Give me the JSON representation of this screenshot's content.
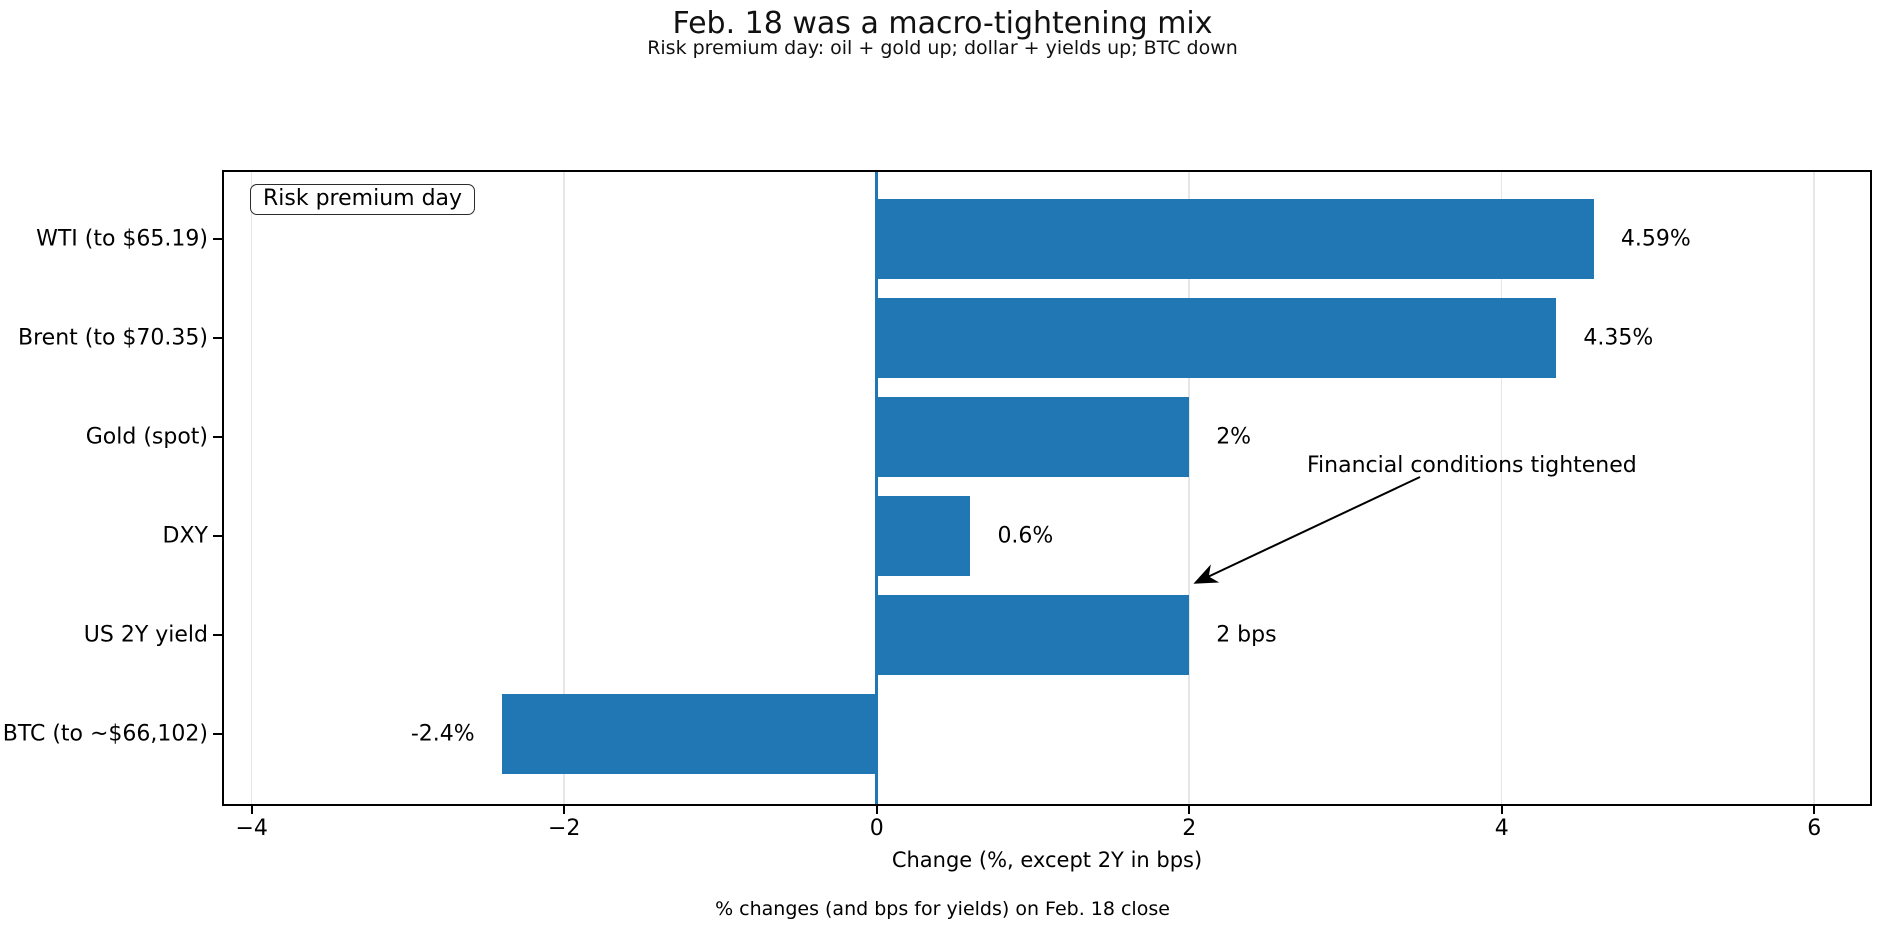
{
  "chart_data": {
    "type": "bar",
    "orientation": "horizontal",
    "title": "Feb. 18 was a macro-tightening mix",
    "subtitle": "Risk premium day: oil + gold up; dollar + yields up; BTC down",
    "categories": [
      "WTI (to $65.19)",
      "Brent (to $70.35)",
      "Gold (spot)",
      "DXY",
      "US 2Y yield",
      "BTC (to ~$66,102)"
    ],
    "values": [
      4.59,
      4.35,
      2.0,
      0.6,
      2.0,
      -2.4
    ],
    "value_labels": [
      "4.59%",
      "4.35%",
      "2%",
      "0.6%",
      "2 bps",
      "-2.4%"
    ],
    "xlabel": "Change (%, except 2Y in bps)",
    "xlim": [
      -4.19,
      6.37
    ],
    "xticks": [
      -4,
      -2,
      0,
      2,
      4,
      6
    ],
    "xtick_labels": [
      "−4",
      "−2",
      "0",
      "2",
      "4",
      "6"
    ],
    "grid": true,
    "bar_color": "#2077b4",
    "zero_line_color": "#1f77b4",
    "legend": {
      "label": "Risk premium day",
      "position": "upper-left"
    },
    "annotation": {
      "text": "Financial conditions tightened",
      "points_to": "end of US 2Y yield bar"
    },
    "caption": "% changes (and bps for yields) on Feb. 18 close"
  }
}
